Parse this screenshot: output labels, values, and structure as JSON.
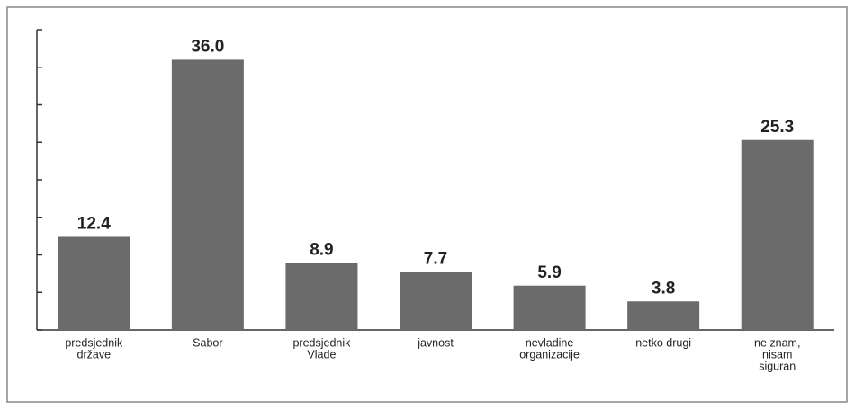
{
  "chart_data": {
    "type": "bar",
    "categories": [
      [
        "predsjednik",
        "države"
      ],
      [
        "Sabor"
      ],
      [
        "predsjednik",
        "Vlade"
      ],
      [
        "javnost"
      ],
      [
        "nevladine",
        "organizacije"
      ],
      [
        "netko drugi"
      ],
      [
        "ne znam,",
        "nisam",
        "siguran"
      ]
    ],
    "values": [
      12.4,
      36.0,
      8.9,
      7.7,
      5.9,
      3.8,
      25.3
    ],
    "value_labels": [
      "12.4",
      "36.0",
      "8.9",
      "7.7",
      "5.9",
      "3.8",
      "25.3"
    ],
    "color": "#6b6b6b",
    "ylim": [
      0,
      40
    ],
    "yticks": [
      0,
      5,
      10,
      15,
      20,
      25,
      30,
      35,
      40
    ]
  }
}
